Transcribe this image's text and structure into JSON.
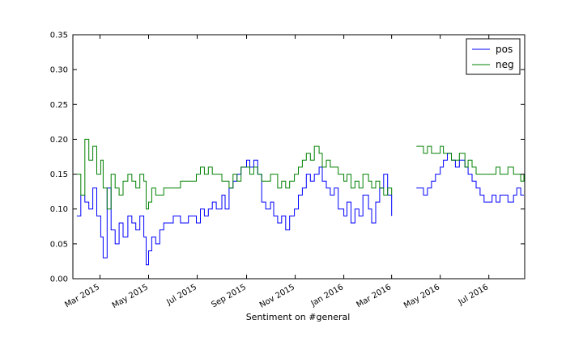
{
  "chart_data": {
    "type": "line",
    "title": "",
    "xlabel": "Sentiment on #general",
    "ylabel": "",
    "ylim": [
      0,
      0.35
    ],
    "xlim": [
      "2015-01-26",
      "2016-08-15"
    ],
    "y_ticks": [
      0.0,
      0.05,
      0.1,
      0.15,
      0.2,
      0.25,
      0.3,
      0.35
    ],
    "y_tick_labels": [
      "0.00",
      "0.05",
      "0.10",
      "0.15",
      "0.20",
      "0.25",
      "0.30",
      "0.35"
    ],
    "x_ticks": [
      "2015-03-01",
      "2015-05-01",
      "2015-07-01",
      "2015-09-01",
      "2015-11-01",
      "2016-01-01",
      "2016-03-01",
      "2016-05-01",
      "2016-07-01"
    ],
    "x_tick_labels": [
      "Mar 2015",
      "May 2015",
      "Jul 2015",
      "Sep 2015",
      "Nov 2015",
      "Jan 2016",
      "Mar 2016",
      "May 2016",
      "Jul 2016"
    ],
    "grid": false,
    "legend": {
      "position": "top-right",
      "entries": [
        "pos",
        "neg"
      ]
    },
    "series": [
      {
        "name": "pos",
        "color": "#0000ff",
        "segments": [
          {
            "x": [
              "2015-01-31",
              "2015-02-05",
              "2015-02-10",
              "2015-02-15",
              "2015-02-20",
              "2015-02-25",
              "2015-03-02",
              "2015-03-05",
              "2015-03-10",
              "2015-03-15",
              "2015-03-20",
              "2015-03-25",
              "2015-03-30",
              "2015-04-05",
              "2015-04-10",
              "2015-04-15",
              "2015-04-20",
              "2015-04-25",
              "2015-04-28",
              "2015-05-01",
              "2015-05-05",
              "2015-05-10",
              "2015-05-15",
              "2015-05-20",
              "2015-05-25",
              "2015-06-01",
              "2015-06-10",
              "2015-06-20",
              "2015-06-30",
              "2015-07-05",
              "2015-07-10",
              "2015-07-15",
              "2015-07-20",
              "2015-07-25",
              "2015-08-01",
              "2015-08-05",
              "2015-08-10",
              "2015-08-15",
              "2015-08-20",
              "2015-08-25",
              "2015-09-01",
              "2015-09-05",
              "2015-09-10",
              "2015-09-15",
              "2015-09-20",
              "2015-09-25",
              "2015-10-01",
              "2015-10-05",
              "2015-10-10",
              "2015-10-15",
              "2015-10-20",
              "2015-10-25",
              "2015-10-31",
              "2015-11-05",
              "2015-11-10",
              "2015-11-15",
              "2015-11-20",
              "2015-11-25",
              "2015-12-01",
              "2015-12-05",
              "2015-12-10",
              "2015-12-15",
              "2015-12-20",
              "2015-12-25",
              "2016-01-01",
              "2016-01-05",
              "2016-01-10",
              "2016-01-15",
              "2016-01-20",
              "2016-01-25",
              "2016-02-01",
              "2016-02-05",
              "2016-02-10",
              "2016-02-15",
              "2016-02-20",
              "2016-02-25",
              "2016-03-01"
            ],
            "y": [
              0.09,
              0.12,
              0.11,
              0.1,
              0.13,
              0.09,
              0.06,
              0.03,
              0.13,
              0.07,
              0.05,
              0.08,
              0.06,
              0.09,
              0.08,
              0.07,
              0.09,
              0.06,
              0.02,
              0.04,
              0.06,
              0.05,
              0.07,
              0.08,
              0.08,
              0.09,
              0.08,
              0.09,
              0.08,
              0.1,
              0.09,
              0.1,
              0.11,
              0.1,
              0.12,
              0.1,
              0.13,
              0.14,
              0.15,
              0.16,
              0.17,
              0.16,
              0.17,
              0.15,
              0.11,
              0.1,
              0.11,
              0.09,
              0.08,
              0.09,
              0.07,
              0.09,
              0.1,
              0.12,
              0.13,
              0.15,
              0.14,
              0.15,
              0.16,
              0.14,
              0.13,
              0.12,
              0.13,
              0.1,
              0.09,
              0.11,
              0.08,
              0.1,
              0.09,
              0.12,
              0.1,
              0.08,
              0.11,
              0.13,
              0.15,
              0.12,
              0.09
            ]
          },
          {
            "x": [
              "2016-04-01",
              "2016-04-05",
              "2016-04-10",
              "2016-04-15",
              "2016-04-20",
              "2016-04-25",
              "2016-05-01",
              "2016-05-05",
              "2016-05-10",
              "2016-05-15",
              "2016-05-20",
              "2016-05-25",
              "2016-06-01",
              "2016-06-05",
              "2016-06-10",
              "2016-06-15",
              "2016-06-20",
              "2016-06-25",
              "2016-07-01",
              "2016-07-05",
              "2016-07-10",
              "2016-07-15",
              "2016-07-20",
              "2016-07-25",
              "2016-08-01",
              "2016-08-05",
              "2016-08-10",
              "2016-08-14"
            ],
            "y": [
              0.13,
              0.13,
              0.12,
              0.13,
              0.14,
              0.15,
              0.16,
              0.17,
              0.18,
              0.17,
              0.16,
              0.17,
              0.16,
              0.15,
              0.14,
              0.13,
              0.12,
              0.11,
              0.11,
              0.12,
              0.11,
              0.12,
              0.12,
              0.11,
              0.12,
              0.13,
              0.12,
              0.12
            ]
          }
        ]
      },
      {
        "name": "neg",
        "color": "#008000",
        "segments": [
          {
            "x": [
              "2015-01-31",
              "2015-02-05",
              "2015-02-10",
              "2015-02-15",
              "2015-02-20",
              "2015-02-25",
              "2015-03-02",
              "2015-03-05",
              "2015-03-10",
              "2015-03-15",
              "2015-03-20",
              "2015-03-25",
              "2015-03-30",
              "2015-04-05",
              "2015-04-10",
              "2015-04-15",
              "2015-04-20",
              "2015-04-25",
              "2015-04-28",
              "2015-05-01",
              "2015-05-05",
              "2015-05-10",
              "2015-05-15",
              "2015-05-20",
              "2015-05-25",
              "2015-06-01",
              "2015-06-10",
              "2015-06-20",
              "2015-06-30",
              "2015-07-05",
              "2015-07-10",
              "2015-07-15",
              "2015-07-20",
              "2015-07-25",
              "2015-08-01",
              "2015-08-05",
              "2015-08-10",
              "2015-08-15",
              "2015-08-20",
              "2015-08-25",
              "2015-09-01",
              "2015-09-05",
              "2015-09-10",
              "2015-09-15",
              "2015-09-20",
              "2015-09-25",
              "2015-10-01",
              "2015-10-05",
              "2015-10-10",
              "2015-10-15",
              "2015-10-20",
              "2015-10-25",
              "2015-10-31",
              "2015-11-05",
              "2015-11-10",
              "2015-11-15",
              "2015-11-20",
              "2015-11-25",
              "2015-12-01",
              "2015-12-05",
              "2015-12-10",
              "2015-12-15",
              "2015-12-20",
              "2015-12-25",
              "2016-01-01",
              "2016-01-05",
              "2016-01-10",
              "2016-01-15",
              "2016-01-20",
              "2016-01-25",
              "2016-02-01",
              "2016-02-05",
              "2016-02-10",
              "2016-02-15",
              "2016-02-20",
              "2016-02-25",
              "2016-03-01"
            ],
            "y": [
              0.15,
              0.12,
              0.2,
              0.17,
              0.19,
              0.15,
              0.17,
              0.13,
              0.1,
              0.15,
              0.13,
              0.12,
              0.14,
              0.15,
              0.14,
              0.13,
              0.15,
              0.14,
              0.1,
              0.11,
              0.13,
              0.12,
              0.12,
              0.13,
              0.13,
              0.13,
              0.14,
              0.14,
              0.15,
              0.16,
              0.15,
              0.16,
              0.15,
              0.15,
              0.14,
              0.14,
              0.13,
              0.15,
              0.14,
              0.16,
              0.16,
              0.15,
              0.16,
              0.15,
              0.14,
              0.14,
              0.15,
              0.15,
              0.13,
              0.14,
              0.13,
              0.14,
              0.15,
              0.16,
              0.17,
              0.18,
              0.17,
              0.19,
              0.18,
              0.16,
              0.17,
              0.16,
              0.16,
              0.15,
              0.14,
              0.15,
              0.13,
              0.14,
              0.13,
              0.15,
              0.14,
              0.13,
              0.14,
              0.13,
              0.12,
              0.13,
              0.12
            ]
          },
          {
            "x": [
              "2016-04-01",
              "2016-04-05",
              "2016-04-10",
              "2016-04-15",
              "2016-04-20",
              "2016-04-25",
              "2016-05-01",
              "2016-05-05",
              "2016-05-10",
              "2016-05-15",
              "2016-05-20",
              "2016-05-25",
              "2016-06-01",
              "2016-06-05",
              "2016-06-10",
              "2016-06-15",
              "2016-06-20",
              "2016-06-25",
              "2016-07-01",
              "2016-07-05",
              "2016-07-10",
              "2016-07-15",
              "2016-07-20",
              "2016-07-25",
              "2016-08-01",
              "2016-08-05",
              "2016-08-10",
              "2016-08-14"
            ],
            "y": [
              0.19,
              0.19,
              0.18,
              0.19,
              0.18,
              0.18,
              0.19,
              0.18,
              0.18,
              0.17,
              0.17,
              0.18,
              0.16,
              0.17,
              0.16,
              0.15,
              0.15,
              0.15,
              0.15,
              0.15,
              0.16,
              0.15,
              0.15,
              0.16,
              0.15,
              0.15,
              0.14,
              0.15
            ]
          }
        ]
      }
    ]
  }
}
